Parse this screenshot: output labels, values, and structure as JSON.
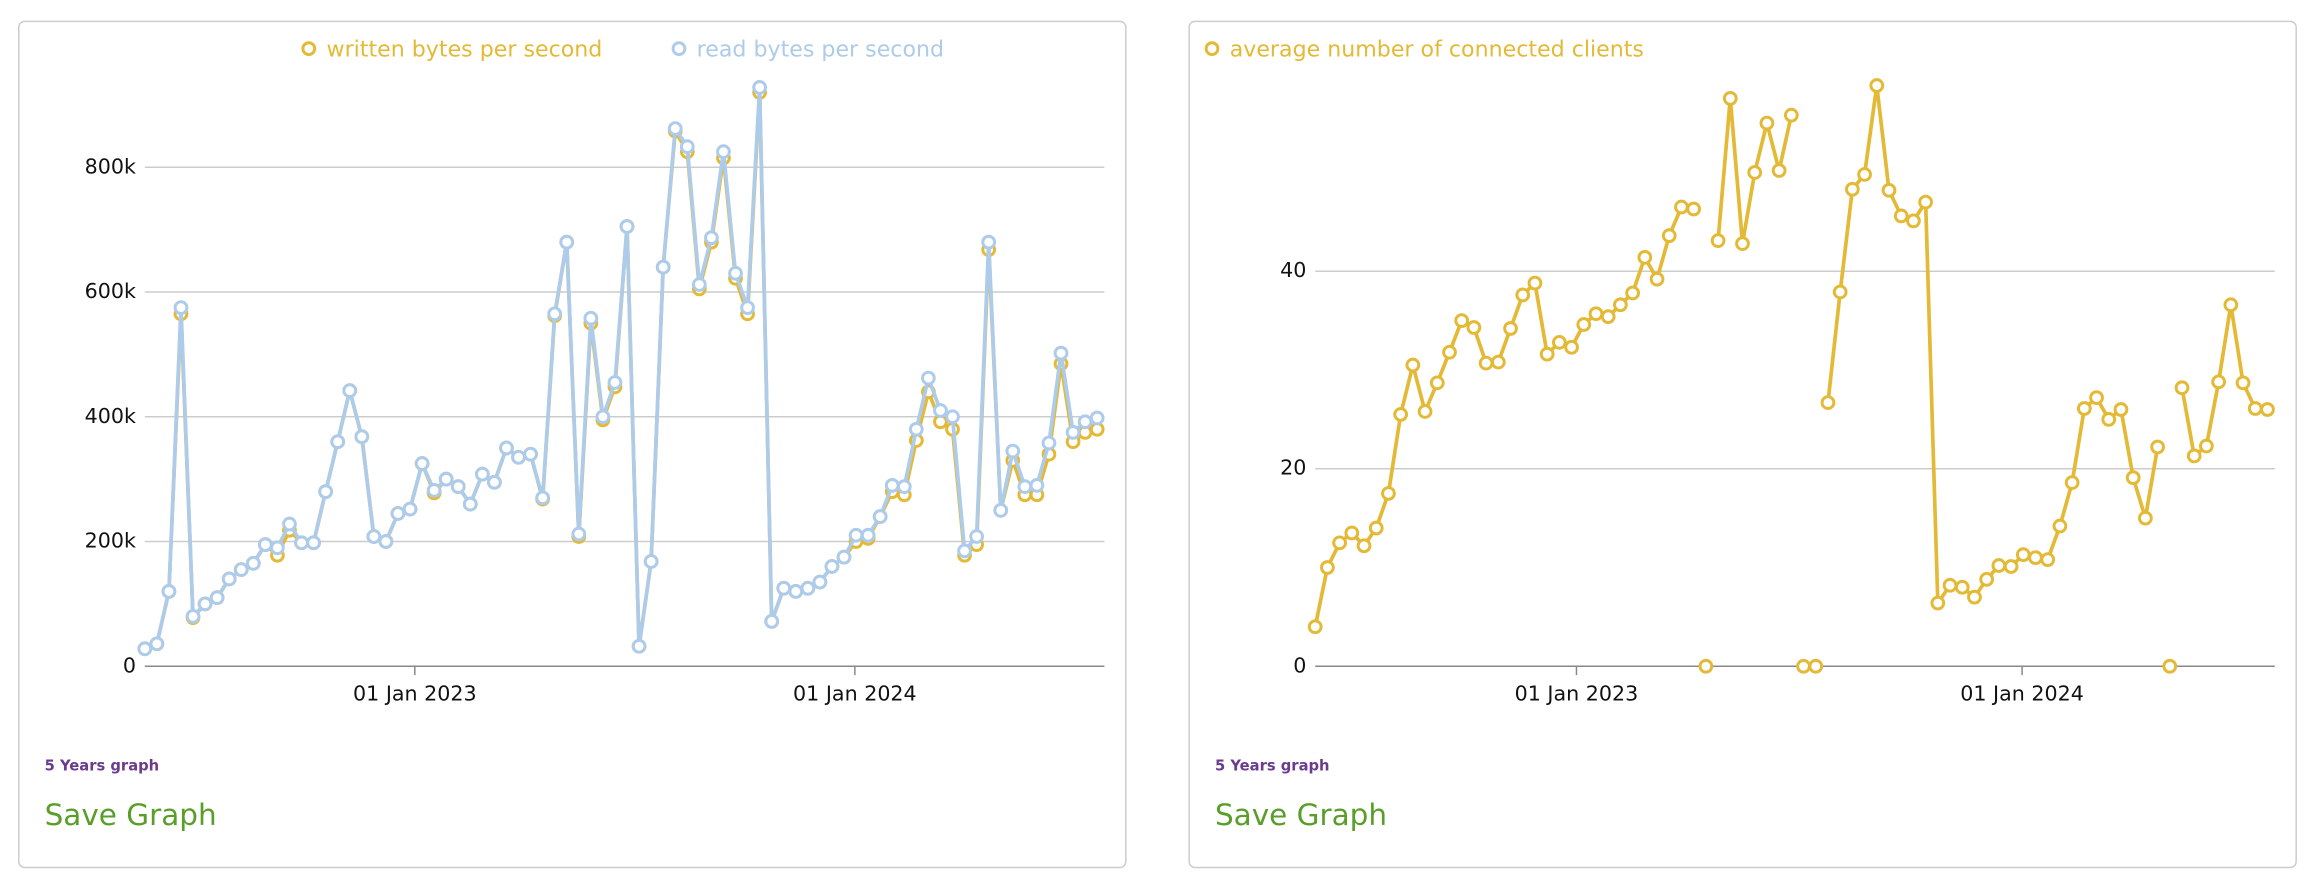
{
  "chart_data": [
    {
      "type": "line",
      "x": [
        "2022-05-22",
        "2022-06-01",
        "2022-06-11",
        "2022-06-21",
        "2022-07-01",
        "2022-07-11",
        "2022-07-21",
        "2022-07-31",
        "2022-08-10",
        "2022-08-20",
        "2022-08-30",
        "2022-09-09",
        "2022-09-19",
        "2022-09-29",
        "2022-10-09",
        "2022-10-19",
        "2022-10-29",
        "2022-11-08",
        "2022-11-18",
        "2022-11-28",
        "2022-12-08",
        "2022-12-18",
        "2022-12-28",
        "2023-01-07",
        "2023-01-17",
        "2023-01-27",
        "2023-02-06",
        "2023-02-16",
        "2023-02-26",
        "2023-03-08",
        "2023-03-18",
        "2023-03-28",
        "2023-04-07",
        "2023-04-17",
        "2023-04-27",
        "2023-05-07",
        "2023-05-17",
        "2023-05-27",
        "2023-06-06",
        "2023-06-16",
        "2023-06-26",
        "2023-07-06",
        "2023-07-16",
        "2023-07-26",
        "2023-08-05",
        "2023-08-15",
        "2023-08-25",
        "2023-09-04",
        "2023-09-14",
        "2023-09-24",
        "2023-10-04",
        "2023-10-14",
        "2023-10-24",
        "2023-11-03",
        "2023-11-13",
        "2023-11-23",
        "2023-12-03",
        "2023-12-13",
        "2023-12-23",
        "2024-01-02",
        "2024-01-12",
        "2024-01-22",
        "2024-02-01",
        "2024-02-11",
        "2024-02-21",
        "2024-03-02",
        "2024-03-12",
        "2024-03-22",
        "2024-04-01",
        "2024-04-11",
        "2024-04-21",
        "2024-05-01",
        "2024-05-11",
        "2024-05-21",
        "2024-05-31",
        "2024-06-10",
        "2024-06-20",
        "2024-06-30",
        "2024-07-10",
        "2024-07-20"
      ],
      "series": [
        {
          "name": "written bytes per second",
          "color": "#e3b935",
          "values": [
            28000,
            36000,
            120000,
            565000,
            78000,
            100000,
            110000,
            140000,
            155000,
            165000,
            195000,
            178000,
            218000,
            198000,
            198000,
            280000,
            360000,
            442000,
            368000,
            208000,
            200000,
            245000,
            252000,
            325000,
            278000,
            300000,
            288000,
            260000,
            308000,
            295000,
            350000,
            335000,
            340000,
            268000,
            562000,
            680000,
            208000,
            550000,
            395000,
            448000,
            705000,
            32000,
            168000,
            640000,
            858000,
            825000,
            605000,
            680000,
            815000,
            622000,
            565000,
            920000,
            72000,
            125000,
            120000,
            125000,
            135000,
            160000,
            175000,
            200000,
            205000,
            240000,
            280000,
            275000,
            362000,
            440000,
            392000,
            380000,
            178000,
            195000,
            668000,
            250000,
            330000,
            275000,
            275000,
            340000,
            485000,
            360000,
            375000,
            380000
          ]
        },
        {
          "name": "read bytes per second",
          "color": "#adcbea",
          "values": [
            28000,
            36000,
            120000,
            575000,
            80000,
            100000,
            110000,
            140000,
            155000,
            165000,
            195000,
            190000,
            228000,
            198000,
            198000,
            280000,
            360000,
            442000,
            368000,
            208000,
            200000,
            245000,
            252000,
            325000,
            282000,
            300000,
            288000,
            260000,
            308000,
            295000,
            350000,
            335000,
            340000,
            270000,
            565000,
            680000,
            212000,
            558000,
            400000,
            455000,
            705000,
            32000,
            168000,
            640000,
            862000,
            833000,
            612000,
            687000,
            825000,
            630000,
            575000,
            928000,
            72000,
            125000,
            120000,
            125000,
            135000,
            160000,
            175000,
            210000,
            210000,
            240000,
            290000,
            288000,
            380000,
            462000,
            410000,
            400000,
            185000,
            208000,
            680000,
            250000,
            345000,
            288000,
            290000,
            358000,
            502000,
            375000,
            392000,
            398000
          ]
        }
      ],
      "xlim": [
        "2022-05-22",
        "2024-07-26"
      ],
      "xticks": [
        {
          "value": "2023-01-01",
          "label": "01 Jan 2023"
        },
        {
          "value": "2024-01-01",
          "label": "01 Jan 2024"
        }
      ],
      "ylim": [
        0,
        950000
      ],
      "yticks": [
        0,
        {
          "value": 200000,
          "label": "200k"
        },
        {
          "value": 400000,
          "label": "400k"
        },
        {
          "value": 600000,
          "label": "600k"
        },
        {
          "value": 800000,
          "label": "800k"
        }
      ],
      "grid": true,
      "legend": "top",
      "caption": "5 Years graph",
      "button": "Save Graph"
    },
    {
      "type": "line",
      "x": [
        "2022-06-01",
        "2022-06-11",
        "2022-06-21",
        "2022-07-01",
        "2022-07-11",
        "2022-07-21",
        "2022-07-31",
        "2022-08-10",
        "2022-08-20",
        "2022-08-30",
        "2022-09-09",
        "2022-09-19",
        "2022-09-29",
        "2022-10-09",
        "2022-10-19",
        "2022-10-29",
        "2022-11-08",
        "2022-11-18",
        "2022-11-28",
        "2022-12-08",
        "2022-12-18",
        "2022-12-28",
        "2023-01-07",
        "2023-01-17",
        "2023-01-27",
        "2023-02-06",
        "2023-02-16",
        "2023-02-26",
        "2023-03-08",
        "2023-03-18",
        "2023-03-28",
        "2023-04-07",
        "2023-04-17",
        "2023-04-27",
        "2023-05-07",
        "2023-05-17",
        "2023-05-27",
        "2023-06-06",
        "2023-06-16",
        "2023-06-26",
        "2023-07-06",
        "2023-07-16",
        "2023-07-26",
        "2023-08-05",
        "2023-08-15",
        "2023-08-25",
        "2023-09-04",
        "2023-09-14",
        "2023-09-24",
        "2023-10-04",
        "2023-10-14",
        "2023-10-24",
        "2023-11-03",
        "2023-11-13",
        "2023-11-23",
        "2023-12-03",
        "2023-12-13",
        "2023-12-23",
        "2024-01-02",
        "2024-01-12",
        "2024-01-22",
        "2024-02-01",
        "2024-02-11",
        "2024-02-21",
        "2024-03-02",
        "2024-03-12",
        "2024-03-22",
        "2024-04-01",
        "2024-04-11",
        "2024-04-21",
        "2024-05-01",
        "2024-05-11",
        "2024-05-21",
        "2024-05-31",
        "2024-06-10",
        "2024-06-20",
        "2024-06-30",
        "2024-07-10",
        "2024-07-20"
      ],
      "series": [
        {
          "name": "average number of connected clients",
          "color": "#e3b935",
          "values": [
            4,
            10,
            12.5,
            13.5,
            12.2,
            14,
            17.5,
            25.5,
            30.5,
            25.8,
            28.7,
            31.8,
            35,
            34.3,
            30.7,
            30.8,
            34.2,
            37.6,
            38.8,
            31.6,
            32.8,
            32.3,
            34.6,
            35.7,
            35.4,
            36.6,
            37.8,
            41.4,
            39.2,
            43.6,
            46.5,
            46.3,
            0,
            43.1,
            57.5,
            42.8,
            50,
            55,
            50.2,
            55.8,
            0,
            0,
            26.7,
            37.9,
            48.3,
            49.8,
            58.8,
            48.2,
            45.6,
            45.1,
            47,
            6.4,
            8.2,
            8,
            7,
            8.8,
            10.2,
            10.1,
            11.3,
            11,
            10.8,
            14.2,
            18.6,
            26.1,
            27.2,
            25,
            26,
            19.1,
            15,
            22.2,
            0,
            28.2,
            21.3,
            22.3,
            28.8,
            36.6,
            28.7,
            26.1,
            26
          ]
        }
      ],
      "xlim": [
        "2022-06-01",
        "2024-07-26"
      ],
      "xticks": [
        {
          "value": "2023-01-01",
          "label": "01 Jan 2023"
        },
        {
          "value": "2024-01-01",
          "label": "01 Jan 2024"
        }
      ],
      "ylim": [
        0,
        60
      ],
      "yticks": [
        0,
        20,
        40
      ],
      "grid": true,
      "legend": "top-left",
      "caption": "5 Years graph",
      "button": "Save Graph"
    }
  ]
}
